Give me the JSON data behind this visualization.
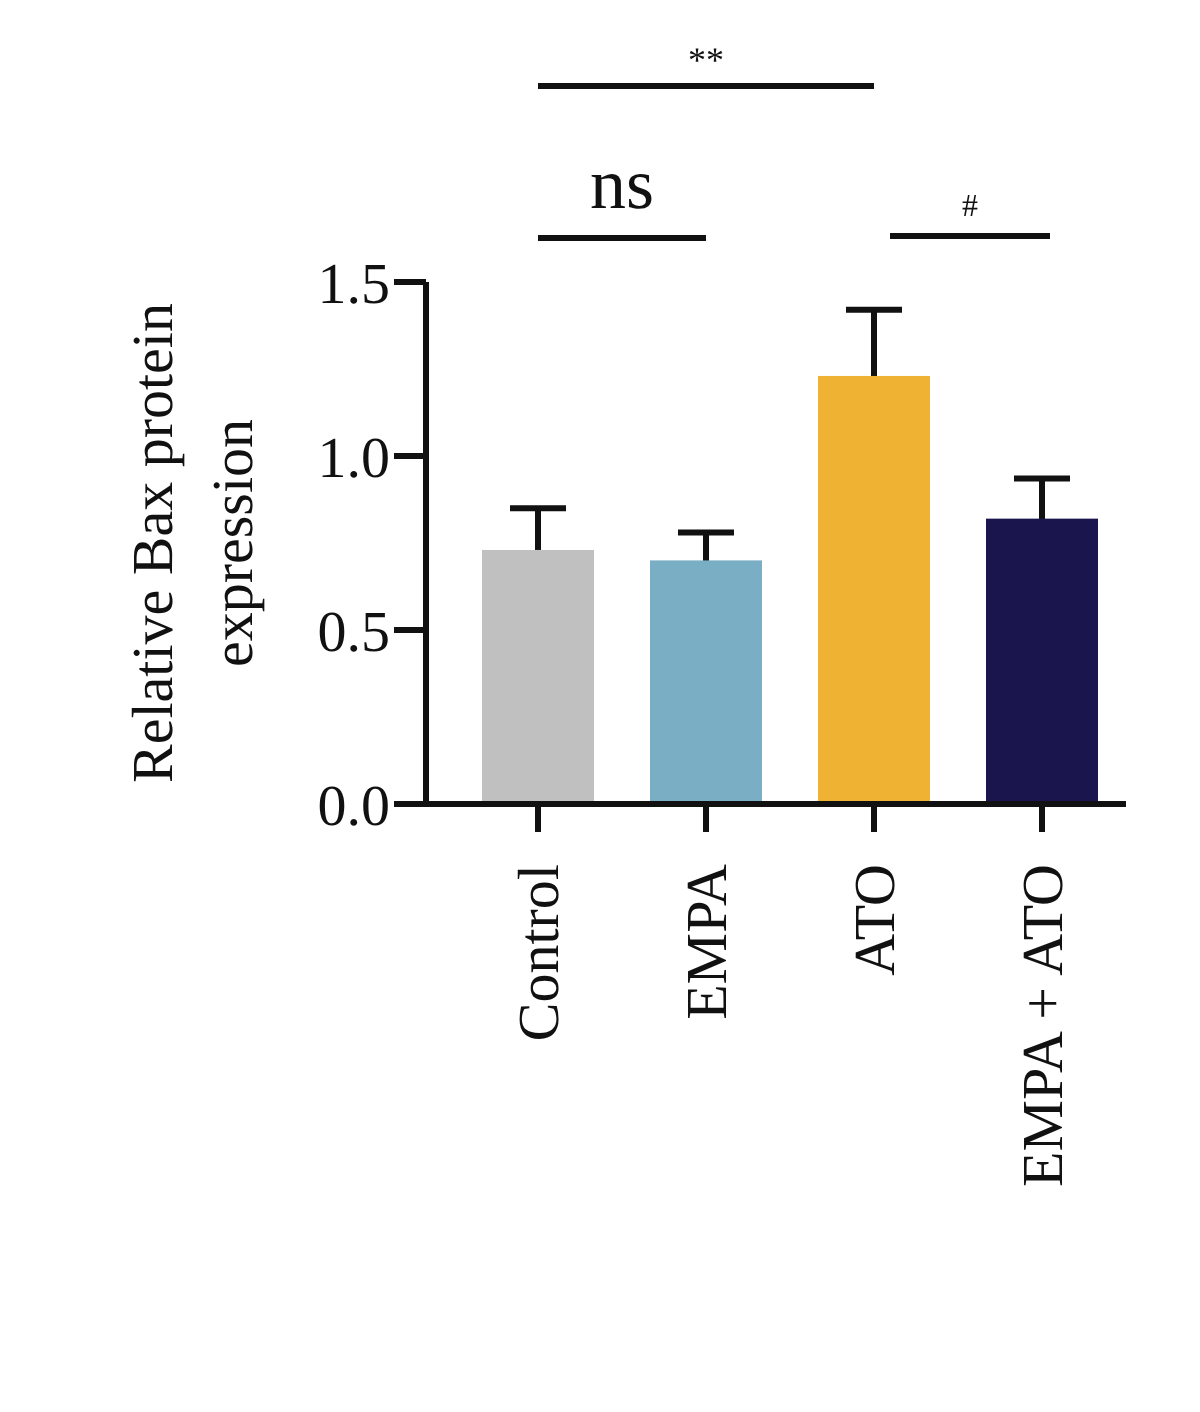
{
  "chart_data": {
    "type": "bar",
    "ylabel": "Relative Bax protein expression",
    "categories": [
      "Control",
      "EMPA",
      "ATO",
      "EMPA + ATO"
    ],
    "values": [
      0.73,
      0.7,
      1.23,
      0.82
    ],
    "colors": [
      "#c0c0c0",
      "#7aaec4",
      "#f0b232",
      "#1a154d"
    ],
    "errors": [
      0.12,
      0.08,
      0.19,
      0.115
    ],
    "ylim": [
      0,
      1.5
    ],
    "yticks": [
      {
        "value": 0,
        "label": "0.0"
      },
      {
        "value": 0.5,
        "label": "0.5"
      },
      {
        "value": 1,
        "label": "1.0"
      },
      {
        "value": 1.5,
        "label": "1.5"
      }
    ],
    "annotations": [
      "**",
      "ns",
      "#"
    ],
    "grid": false,
    "legend": false
  }
}
